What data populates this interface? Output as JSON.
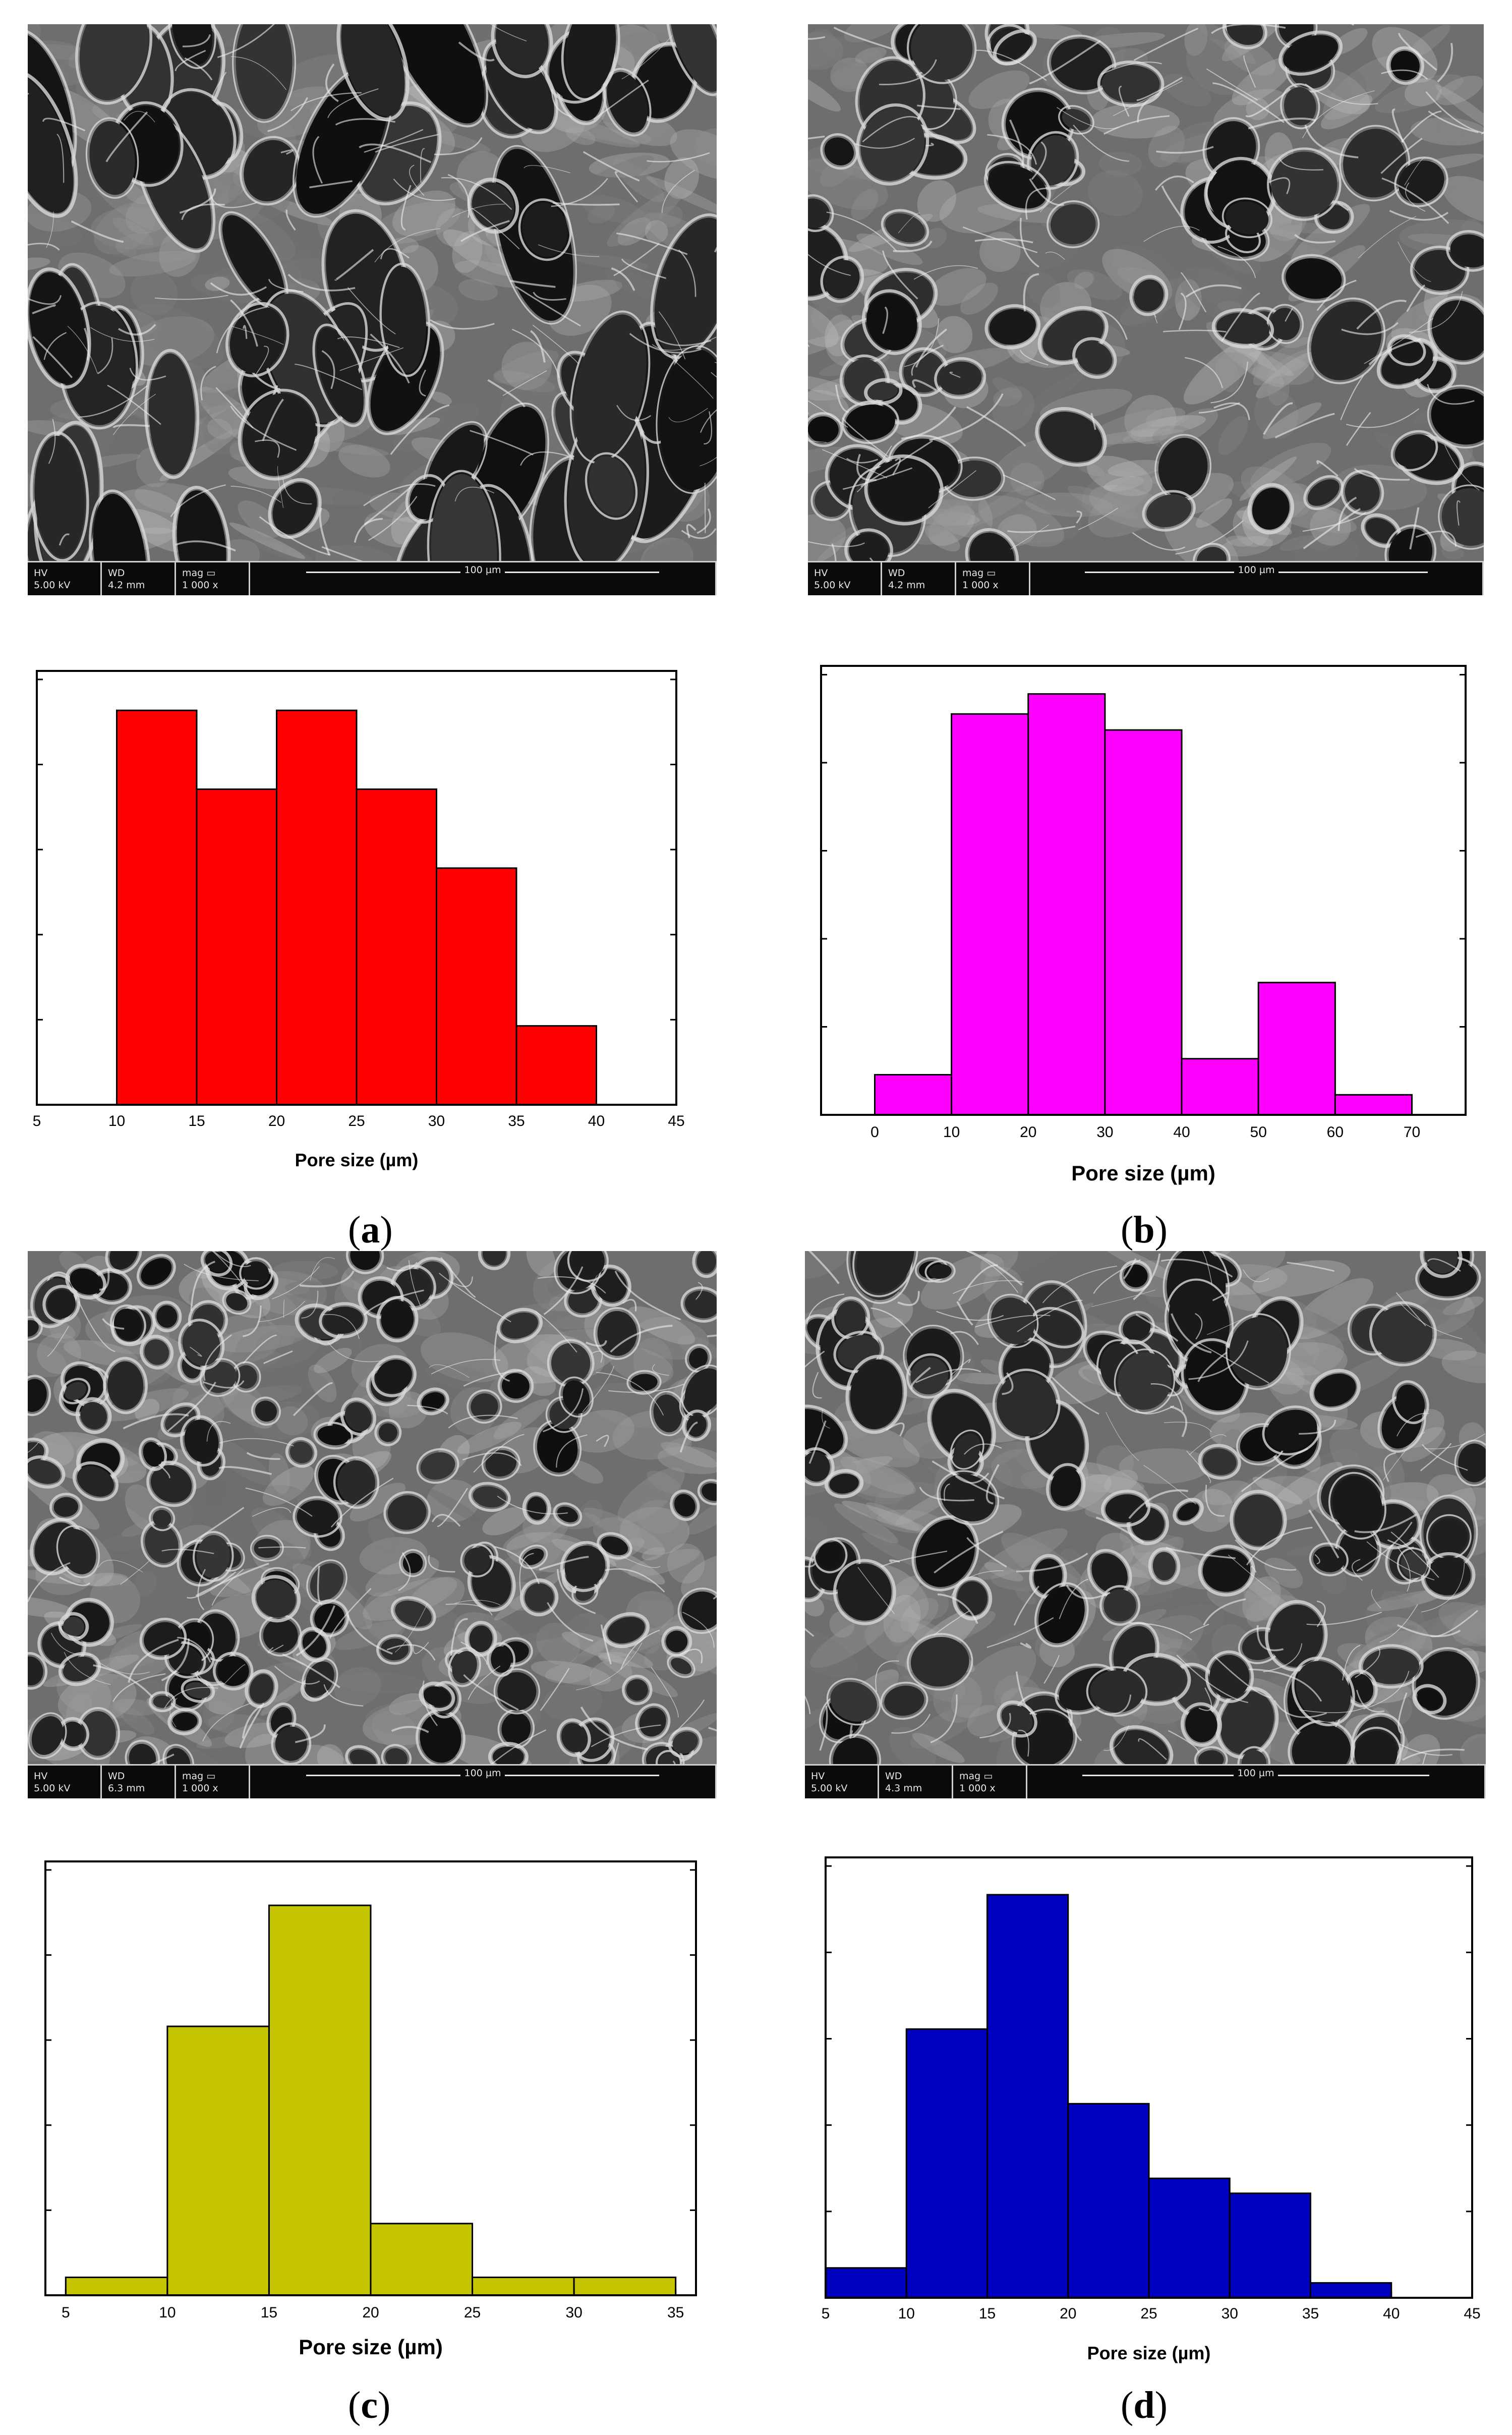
{
  "figure": {
    "panels": [
      {
        "id": "a",
        "caption_letter": "a",
        "sem": {
          "hv_label": "HV",
          "hv_value": "5.00 kV",
          "wd_label": "WD",
          "wd_value": "4.2 mm",
          "mag_label": "mag",
          "mag_value": "1 000 x",
          "scale": "100 µm"
        }
      },
      {
        "id": "b",
        "caption_letter": "b",
        "sem": {
          "hv_label": "HV",
          "hv_value": "5.00 kV",
          "wd_label": "WD",
          "wd_value": "4.2 mm",
          "mag_label": "mag",
          "mag_value": "1 000 x",
          "scale": "100 µm"
        }
      },
      {
        "id": "c",
        "caption_letter": "c",
        "sem": {
          "hv_label": "HV",
          "hv_value": "5.00 kV",
          "wd_label": "WD",
          "wd_value": "6.3 mm",
          "mag_label": "mag",
          "mag_value": "1 000 x",
          "scale": "100 µm"
        }
      },
      {
        "id": "d",
        "caption_letter": "d",
        "sem": {
          "hv_label": "HV",
          "hv_value": "5.00 kV",
          "wd_label": "WD",
          "wd_value": "4.3 mm",
          "mag_label": "mag",
          "mag_value": "1 000 x",
          "scale": "100 µm"
        }
      }
    ]
  },
  "chart_data": [
    {
      "type": "bar",
      "panel": "a",
      "xlabel": "Pore size (µm)",
      "ylabel": "",
      "color": "#ff0000",
      "xlim": [
        5,
        45
      ],
      "xticks": [
        "5",
        "10",
        "15",
        "20",
        "25",
        "30",
        "35",
        "40",
        "45"
      ],
      "ylim": [
        0,
        5.5
      ],
      "bins": [
        [
          10,
          15
        ],
        [
          15,
          20
        ],
        [
          20,
          25
        ],
        [
          25,
          30
        ],
        [
          30,
          35
        ],
        [
          35,
          40
        ]
      ],
      "values": [
        5,
        4,
        5,
        4,
        3,
        1
      ]
    },
    {
      "type": "bar",
      "panel": "b",
      "xlabel": "Pore size (µm)",
      "ylabel": "",
      "color": "#ff00ff",
      "xlim": [
        -7,
        77
      ],
      "xticks": [
        "0",
        "10",
        "20",
        "30",
        "40",
        "50",
        "60",
        "70"
      ],
      "ylim": [
        0,
        11.2
      ],
      "bins": [
        [
          0,
          10
        ],
        [
          10,
          20
        ],
        [
          20,
          30
        ],
        [
          30,
          40
        ],
        [
          40,
          50
        ],
        [
          50,
          60
        ],
        [
          60,
          70
        ]
      ],
      "values": [
        1,
        10,
        10.5,
        9.6,
        1.4,
        3.3,
        0.5
      ]
    },
    {
      "type": "bar",
      "panel": "c",
      "xlabel": "Pore size (µm)",
      "ylabel": "",
      "color": "#c4c400",
      "xlim": [
        4,
        36
      ],
      "xticks": [
        "5",
        "10",
        "15",
        "20",
        "25",
        "30",
        "35"
      ],
      "ylim": [
        0,
        4.84
      ],
      "bins": [
        [
          5,
          10
        ],
        [
          10,
          15
        ],
        [
          15,
          20
        ],
        [
          20,
          25
        ],
        [
          25,
          30
        ],
        [
          30,
          35
        ]
      ],
      "values": [
        0.2,
        3,
        4.35,
        0.8,
        0.2,
        0.2
      ]
    },
    {
      "type": "bar",
      "panel": "d",
      "xlabel": "Pore size (µm)",
      "ylabel": "",
      "color": "#0000c0",
      "xlim": [
        5,
        45
      ],
      "xticks": [
        "5",
        "10",
        "15",
        "20",
        "25",
        "30",
        "35",
        "40",
        "45"
      ],
      "ylim": [
        0,
        5.9
      ],
      "bins": [
        [
          5,
          10
        ],
        [
          10,
          15
        ],
        [
          15,
          20
        ],
        [
          20,
          25
        ],
        [
          25,
          30
        ],
        [
          30,
          35
        ],
        [
          35,
          40
        ]
      ],
      "values": [
        0.4,
        3.6,
        5.4,
        2.6,
        1.6,
        1.4,
        0.2
      ]
    }
  ]
}
